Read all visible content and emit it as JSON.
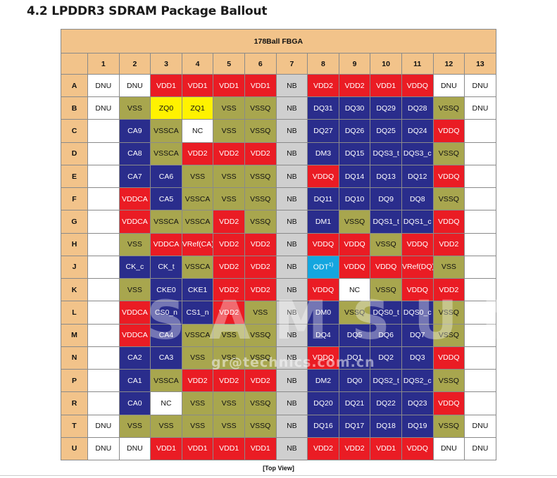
{
  "heading": "4.2 LPDDR3 SDRAM Package Ballout",
  "package_title": "178Ball FBGA",
  "footer": "[Top View]",
  "watermark_logo": "SAMSUNG",
  "watermark_text": "gr@technics.com.cn",
  "colors": {
    "w": "#ffffff",
    "r": "#ea1c24",
    "o": "#a8a64e",
    "bl": "#2a2d8c",
    "g": "#cfcfcf",
    "y": "#fff200",
    "c": "#14a6df",
    "header": "#f2c38a"
  },
  "columns": [
    "1",
    "2",
    "3",
    "4",
    "5",
    "6",
    "7",
    "8",
    "9",
    "10",
    "11",
    "12",
    "13"
  ],
  "rows": [
    {
      "label": "A",
      "cells": [
        [
          "DNU",
          "w"
        ],
        [
          "DNU",
          "w"
        ],
        [
          "VDD1",
          "r"
        ],
        [
          "VDD1",
          "r"
        ],
        [
          "VDD1",
          "r"
        ],
        [
          "VDD1",
          "r"
        ],
        [
          "NB",
          "g"
        ],
        [
          "VDD2",
          "r"
        ],
        [
          "VDD2",
          "r"
        ],
        [
          "VDD1",
          "r"
        ],
        [
          "VDDQ",
          "r"
        ],
        [
          "DNU",
          "w"
        ],
        [
          "DNU",
          "w"
        ]
      ]
    },
    {
      "label": "B",
      "cells": [
        [
          "DNU",
          "w"
        ],
        [
          "VSS",
          "o"
        ],
        [
          "ZQ0",
          "y"
        ],
        [
          "ZQ1",
          "y"
        ],
        [
          "VSS",
          "o"
        ],
        [
          "VSSQ",
          "o"
        ],
        [
          "NB",
          "g"
        ],
        [
          "DQ31",
          "bl"
        ],
        [
          "DQ30",
          "bl"
        ],
        [
          "DQ29",
          "bl"
        ],
        [
          "DQ28",
          "bl"
        ],
        [
          "VSSQ",
          "o"
        ],
        [
          "DNU",
          "w"
        ]
      ]
    },
    {
      "label": "C",
      "cells": [
        [
          "",
          "w"
        ],
        [
          "CA9",
          "bl"
        ],
        [
          "VSSCA",
          "o"
        ],
        [
          "NC",
          "w"
        ],
        [
          "VSS",
          "o"
        ],
        [
          "VSSQ",
          "o"
        ],
        [
          "NB",
          "g"
        ],
        [
          "DQ27",
          "bl"
        ],
        [
          "DQ26",
          "bl"
        ],
        [
          "DQ25",
          "bl"
        ],
        [
          "DQ24",
          "bl"
        ],
        [
          "VDDQ",
          "r"
        ],
        [
          "",
          "w"
        ]
      ]
    },
    {
      "label": "D",
      "cells": [
        [
          "",
          "w"
        ],
        [
          "CA8",
          "bl"
        ],
        [
          "VSSCA",
          "o"
        ],
        [
          "VDD2",
          "r"
        ],
        [
          "VDD2",
          "r"
        ],
        [
          "VDD2",
          "r"
        ],
        [
          "NB",
          "g"
        ],
        [
          "DM3",
          "bl"
        ],
        [
          "DQ15",
          "bl"
        ],
        [
          "DQS3_t",
          "bl"
        ],
        [
          "DQS3_c",
          "bl"
        ],
        [
          "VSSQ",
          "o"
        ],
        [
          "",
          "w"
        ]
      ]
    },
    {
      "label": "E",
      "cells": [
        [
          "",
          "w"
        ],
        [
          "CA7",
          "bl"
        ],
        [
          "CA6",
          "bl"
        ],
        [
          "VSS",
          "o"
        ],
        [
          "VSS",
          "o"
        ],
        [
          "VSSQ",
          "o"
        ],
        [
          "NB",
          "g"
        ],
        [
          "VDDQ",
          "r"
        ],
        [
          "DQ14",
          "bl"
        ],
        [
          "DQ13",
          "bl"
        ],
        [
          "DQ12",
          "bl"
        ],
        [
          "VDDQ",
          "r"
        ],
        [
          "",
          "w"
        ]
      ]
    },
    {
      "label": "F",
      "cells": [
        [
          "",
          "w"
        ],
        [
          "VDDCA",
          "r"
        ],
        [
          "CA5",
          "bl"
        ],
        [
          "VSSCA",
          "o"
        ],
        [
          "VSS",
          "o"
        ],
        [
          "VSSQ",
          "o"
        ],
        [
          "NB",
          "g"
        ],
        [
          "DQ11",
          "bl"
        ],
        [
          "DQ10",
          "bl"
        ],
        [
          "DQ9",
          "bl"
        ],
        [
          "DQ8",
          "bl"
        ],
        [
          "VSSQ",
          "o"
        ],
        [
          "",
          "w"
        ]
      ]
    },
    {
      "label": "G",
      "cells": [
        [
          "",
          "w"
        ],
        [
          "VDDCA",
          "r"
        ],
        [
          "VSSCA",
          "o"
        ],
        [
          "VSSCA",
          "o"
        ],
        [
          "VDD2",
          "r"
        ],
        [
          "VSSQ",
          "o"
        ],
        [
          "NB",
          "g"
        ],
        [
          "DM1",
          "bl"
        ],
        [
          "VSSQ",
          "o"
        ],
        [
          "DQS1_t",
          "bl"
        ],
        [
          "DQS1_c",
          "bl"
        ],
        [
          "VDDQ",
          "r"
        ],
        [
          "",
          "w"
        ]
      ]
    },
    {
      "label": "H",
      "cells": [
        [
          "",
          "w"
        ],
        [
          "VSS",
          "o"
        ],
        [
          "VDDCA",
          "r"
        ],
        [
          "VRef(CA)",
          "r"
        ],
        [
          "VDD2",
          "r"
        ],
        [
          "VDD2",
          "r"
        ],
        [
          "NB",
          "g"
        ],
        [
          "VDDQ",
          "r"
        ],
        [
          "VDDQ",
          "r"
        ],
        [
          "VSSQ",
          "o"
        ],
        [
          "VDDQ",
          "r"
        ],
        [
          "VDD2",
          "r"
        ],
        [
          "",
          "w"
        ]
      ]
    },
    {
      "label": "J",
      "cells": [
        [
          "",
          "w"
        ],
        [
          "CK_c",
          "bl"
        ],
        [
          "CK_t",
          "bl"
        ],
        [
          "VSSCA",
          "o"
        ],
        [
          "VDD2",
          "r"
        ],
        [
          "VDD2",
          "r"
        ],
        [
          "NB",
          "g"
        ],
        [
          "ODT",
          "c"
        ],
        [
          "VDDQ",
          "r"
        ],
        [
          "VDDQ",
          "r"
        ],
        [
          "VRef(DQ)",
          "r"
        ],
        [
          "VSS",
          "o"
        ],
        [
          "",
          "w"
        ]
      ]
    },
    {
      "label": "K",
      "cells": [
        [
          "",
          "w"
        ],
        [
          "VSS",
          "o"
        ],
        [
          "CKE0",
          "bl"
        ],
        [
          "CKE1",
          "bl"
        ],
        [
          "VDD2",
          "r"
        ],
        [
          "VDD2",
          "r"
        ],
        [
          "NB",
          "g"
        ],
        [
          "VDDQ",
          "r"
        ],
        [
          "NC",
          "w"
        ],
        [
          "VSSQ",
          "o"
        ],
        [
          "VDDQ",
          "r"
        ],
        [
          "VDD2",
          "r"
        ],
        [
          "",
          "w"
        ]
      ]
    },
    {
      "label": "L",
      "cells": [
        [
          "",
          "w"
        ],
        [
          "VDDCA",
          "r"
        ],
        [
          "CS0_n",
          "bl"
        ],
        [
          "CS1_n",
          "bl"
        ],
        [
          "VDD2",
          "r"
        ],
        [
          "VSS",
          "o"
        ],
        [
          "NB",
          "g"
        ],
        [
          "DM0",
          "bl"
        ],
        [
          "VSSQ",
          "o"
        ],
        [
          "DQS0_t",
          "bl"
        ],
        [
          "DQS0_c",
          "bl"
        ],
        [
          "VSSQ",
          "o"
        ],
        [
          "",
          "w"
        ]
      ]
    },
    {
      "label": "M",
      "cells": [
        [
          "",
          "w"
        ],
        [
          "VDDCA",
          "r"
        ],
        [
          "CA4",
          "bl"
        ],
        [
          "VSSCA",
          "o"
        ],
        [
          "VSS",
          "o"
        ],
        [
          "VSSQ",
          "o"
        ],
        [
          "NB",
          "g"
        ],
        [
          "DQ4",
          "bl"
        ],
        [
          "DQ5",
          "bl"
        ],
        [
          "DQ6",
          "bl"
        ],
        [
          "DQ7",
          "bl"
        ],
        [
          "VSSQ",
          "o"
        ],
        [
          "",
          "w"
        ]
      ]
    },
    {
      "label": "N",
      "cells": [
        [
          "",
          "w"
        ],
        [
          "CA2",
          "bl"
        ],
        [
          "CA3",
          "bl"
        ],
        [
          "VSS",
          "o"
        ],
        [
          "VSS",
          "o"
        ],
        [
          "VSSQ",
          "o"
        ],
        [
          "NB",
          "g"
        ],
        [
          "VDDQ",
          "r"
        ],
        [
          "DQ1",
          "bl"
        ],
        [
          "DQ2",
          "bl"
        ],
        [
          "DQ3",
          "bl"
        ],
        [
          "VDDQ",
          "r"
        ],
        [
          "",
          "w"
        ]
      ]
    },
    {
      "label": "P",
      "cells": [
        [
          "",
          "w"
        ],
        [
          "CA1",
          "bl"
        ],
        [
          "VSSCA",
          "o"
        ],
        [
          "VDD2",
          "r"
        ],
        [
          "VDD2",
          "r"
        ],
        [
          "VDD2",
          "r"
        ],
        [
          "NB",
          "g"
        ],
        [
          "DM2",
          "bl"
        ],
        [
          "DQ0",
          "bl"
        ],
        [
          "DQS2_t",
          "bl"
        ],
        [
          "DQS2_c",
          "bl"
        ],
        [
          "VSSQ",
          "o"
        ],
        [
          "",
          "w"
        ]
      ]
    },
    {
      "label": "R",
      "cells": [
        [
          "",
          "w"
        ],
        [
          "CA0",
          "bl"
        ],
        [
          "NC",
          "w"
        ],
        [
          "VSS",
          "o"
        ],
        [
          "VSS",
          "o"
        ],
        [
          "VSSQ",
          "o"
        ],
        [
          "NB",
          "g"
        ],
        [
          "DQ20",
          "bl"
        ],
        [
          "DQ21",
          "bl"
        ],
        [
          "DQ22",
          "bl"
        ],
        [
          "DQ23",
          "bl"
        ],
        [
          "VDDQ",
          "r"
        ],
        [
          "",
          "w"
        ]
      ]
    },
    {
      "label": "T",
      "cells": [
        [
          "DNU",
          "w"
        ],
        [
          "VSS",
          "o"
        ],
        [
          "VSS",
          "o"
        ],
        [
          "VSS",
          "o"
        ],
        [
          "VSS",
          "o"
        ],
        [
          "VSSQ",
          "o"
        ],
        [
          "NB",
          "g"
        ],
        [
          "DQ16",
          "bl"
        ],
        [
          "DQ17",
          "bl"
        ],
        [
          "DQ18",
          "bl"
        ],
        [
          "DQ19",
          "bl"
        ],
        [
          "VSSQ",
          "o"
        ],
        [
          "DNU",
          "w"
        ]
      ]
    },
    {
      "label": "U",
      "cells": [
        [
          "DNU",
          "w"
        ],
        [
          "DNU",
          "w"
        ],
        [
          "VDD1",
          "r"
        ],
        [
          "VDD1",
          "r"
        ],
        [
          "VDD1",
          "r"
        ],
        [
          "VDD1",
          "r"
        ],
        [
          "NB",
          "g"
        ],
        [
          "VDD2",
          "r"
        ],
        [
          "VDD2",
          "r"
        ],
        [
          "VDD1",
          "r"
        ],
        [
          "VDDQ",
          "r"
        ],
        [
          "DNU",
          "w"
        ],
        [
          "DNU",
          "w"
        ]
      ]
    }
  ],
  "footnote_marks": {
    "ODT": "1)"
  }
}
